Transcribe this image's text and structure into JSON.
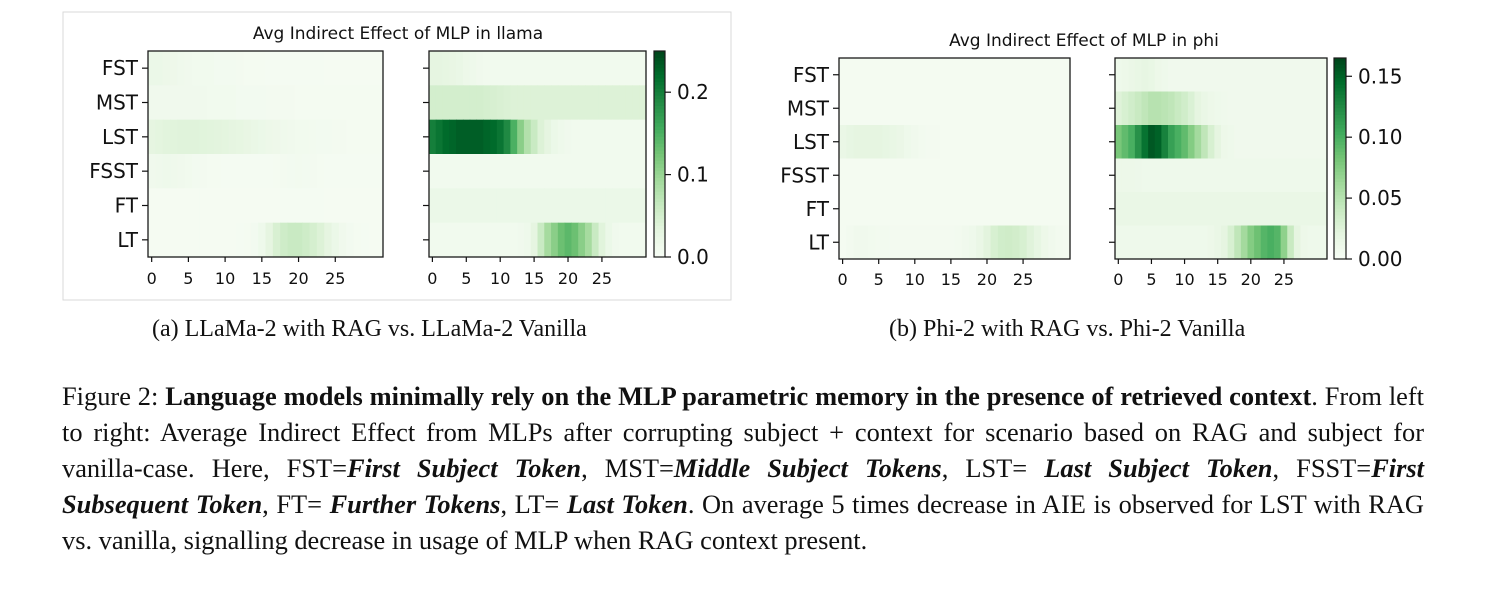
{
  "chart_data": [
    {
      "type": "heatmap",
      "title": "Avg Indirect Effect of MLP in llama",
      "colormap": "Greens",
      "colorbar": {
        "ticks": [
          "0.0",
          "0.1",
          "0.2"
        ],
        "tick_values": [
          0.0,
          0.1,
          0.2
        ],
        "range": [
          0.0,
          0.25
        ]
      },
      "rows": [
        "FST",
        "MST",
        "LST",
        "FSST",
        "FT",
        "LT"
      ],
      "x_ticks": [
        "0",
        "5",
        "10",
        "15",
        "20",
        "25"
      ],
      "num_layers": 32,
      "panels": [
        {
          "name": "LLaMa-2 with RAG",
          "values": {
            "FST": [
              0.02,
              0.02,
              0.018,
              0.016,
              0.014,
              0.012,
              0.01,
              0.01,
              0.01,
              0.008,
              0.008,
              0.008,
              0.007,
              0.006,
              0.006,
              0.006,
              0.005,
              0.005,
              0.005,
              0.005,
              0.005,
              0.005,
              0.005,
              0.005,
              0.004,
              0.004,
              0.004,
              0.004,
              0.004,
              0.004,
              0.004,
              0.004
            ],
            "MST": [
              0.012,
              0.012,
              0.012,
              0.012,
              0.012,
              0.012,
              0.012,
              0.012,
              0.01,
              0.01,
              0.01,
              0.01,
              0.008,
              0.008,
              0.008,
              0.008,
              0.007,
              0.007,
              0.007,
              0.007,
              0.006,
              0.006,
              0.006,
              0.006,
              0.006,
              0.006,
              0.006,
              0.006,
              0.006,
              0.006,
              0.006,
              0.006
            ],
            "LST": [
              0.03,
              0.032,
              0.034,
              0.035,
              0.036,
              0.036,
              0.036,
              0.035,
              0.034,
              0.033,
              0.032,
              0.03,
              0.028,
              0.025,
              0.022,
              0.02,
              0.018,
              0.016,
              0.014,
              0.012,
              0.01,
              0.01,
              0.009,
              0.008,
              0.008,
              0.007,
              0.007,
              0.006,
              0.006,
              0.006,
              0.006,
              0.006
            ],
            "FSST": [
              0.012,
              0.014,
              0.015,
              0.014,
              0.012,
              0.01,
              0.008,
              0.007,
              0.006,
              0.006,
              0.005,
              0.005,
              0.005,
              0.005,
              0.005,
              0.005,
              0.005,
              0.006,
              0.007,
              0.008,
              0.009,
              0.008,
              0.007,
              0.006,
              0.005,
              0.005,
              0.005,
              0.005,
              0.005,
              0.005,
              0.005,
              0.005
            ],
            "FT": [
              0.004,
              0.004,
              0.004,
              0.004,
              0.004,
              0.004,
              0.004,
              0.004,
              0.004,
              0.004,
              0.004,
              0.004,
              0.004,
              0.004,
              0.004,
              0.004,
              0.004,
              0.004,
              0.005,
              0.005,
              0.005,
              0.005,
              0.005,
              0.005,
              0.004,
              0.004,
              0.004,
              0.004,
              0.004,
              0.004,
              0.004,
              0.004
            ],
            "LT": [
              0.004,
              0.004,
              0.004,
              0.004,
              0.004,
              0.004,
              0.004,
              0.004,
              0.004,
              0.004,
              0.004,
              0.004,
              0.005,
              0.006,
              0.008,
              0.015,
              0.03,
              0.045,
              0.055,
              0.06,
              0.06,
              0.055,
              0.048,
              0.04,
              0.03,
              0.02,
              0.012,
              0.008,
              0.006,
              0.005,
              0.004,
              0.004
            ]
          }
        },
        {
          "name": "LLaMa-2 Vanilla",
          "values": {
            "FST": [
              0.03,
              0.03,
              0.028,
              0.025,
              0.022,
              0.018,
              0.015,
              0.012,
              0.01,
              0.01,
              0.01,
              0.01,
              0.01,
              0.01,
              0.01,
              0.01,
              0.01,
              0.01,
              0.01,
              0.01,
              0.01,
              0.01,
              0.01,
              0.01,
              0.01,
              0.01,
              0.01,
              0.01,
              0.01,
              0.01,
              0.01,
              0.01
            ],
            "MST": [
              0.05,
              0.05,
              0.05,
              0.05,
              0.05,
              0.05,
              0.05,
              0.05,
              0.048,
              0.046,
              0.044,
              0.042,
              0.04,
              0.04,
              0.04,
              0.04,
              0.04,
              0.04,
              0.04,
              0.04,
              0.04,
              0.04,
              0.04,
              0.04,
              0.04,
              0.04,
              0.04,
              0.04,
              0.04,
              0.04,
              0.04,
              0.04
            ],
            "LST": [
              0.2,
              0.21,
              0.22,
              0.225,
              0.23,
              0.23,
              0.23,
              0.23,
              0.225,
              0.22,
              0.21,
              0.19,
              0.15,
              0.11,
              0.08,
              0.06,
              0.04,
              0.03,
              0.02,
              0.015,
              0.012,
              0.01,
              0.01,
              0.01,
              0.01,
              0.01,
              0.01,
              0.01,
              0.01,
              0.01,
              0.01,
              0.01
            ],
            "FSST": [
              0.01,
              0.01,
              0.01,
              0.01,
              0.01,
              0.01,
              0.01,
              0.01,
              0.01,
              0.01,
              0.01,
              0.01,
              0.01,
              0.01,
              0.01,
              0.01,
              0.01,
              0.01,
              0.01,
              0.01,
              0.01,
              0.01,
              0.01,
              0.01,
              0.01,
              0.01,
              0.01,
              0.01,
              0.01,
              0.01,
              0.01,
              0.01
            ],
            "FT": [
              0.02,
              0.02,
              0.02,
              0.02,
              0.02,
              0.02,
              0.02,
              0.02,
              0.02,
              0.02,
              0.02,
              0.02,
              0.02,
              0.02,
              0.02,
              0.02,
              0.02,
              0.02,
              0.02,
              0.02,
              0.02,
              0.02,
              0.02,
              0.02,
              0.02,
              0.02,
              0.02,
              0.02,
              0.02,
              0.02,
              0.02,
              0.02
            ],
            "LT": [
              0.01,
              0.01,
              0.01,
              0.01,
              0.01,
              0.01,
              0.01,
              0.01,
              0.01,
              0.01,
              0.01,
              0.01,
              0.01,
              0.012,
              0.015,
              0.03,
              0.06,
              0.09,
              0.11,
              0.13,
              0.14,
              0.13,
              0.11,
              0.09,
              0.06,
              0.035,
              0.02,
              0.012,
              0.01,
              0.01,
              0.01,
              0.01
            ]
          }
        }
      ]
    },
    {
      "type": "heatmap",
      "title": "Avg Indirect Effect of MLP in phi",
      "colormap": "Greens",
      "colorbar": {
        "ticks": [
          "0.00",
          "0.05",
          "0.10",
          "0.15"
        ],
        "tick_values": [
          0.0,
          0.05,
          0.1,
          0.15
        ],
        "range": [
          0.0,
          0.165
        ]
      },
      "rows": [
        "FST",
        "MST",
        "LST",
        "FSST",
        "FT",
        "LT"
      ],
      "x_ticks": [
        "0",
        "5",
        "10",
        "15",
        "20",
        "25"
      ],
      "num_layers": 32,
      "panels": [
        {
          "name": "Phi-2 with RAG",
          "values": {
            "FST": [
              0.004,
              0.004,
              0.004,
              0.004,
              0.004,
              0.004,
              0.004,
              0.004,
              0.004,
              0.004,
              0.004,
              0.004,
              0.004,
              0.004,
              0.004,
              0.004,
              0.004,
              0.004,
              0.004,
              0.004,
              0.004,
              0.004,
              0.004,
              0.004,
              0.004,
              0.004,
              0.004,
              0.004,
              0.004,
              0.004,
              0.004,
              0.004
            ],
            "MST": [
              0.004,
              0.004,
              0.004,
              0.004,
              0.004,
              0.004,
              0.004,
              0.004,
              0.004,
              0.004,
              0.004,
              0.004,
              0.004,
              0.004,
              0.004,
              0.004,
              0.004,
              0.004,
              0.004,
              0.004,
              0.004,
              0.004,
              0.004,
              0.004,
              0.004,
              0.004,
              0.004,
              0.004,
              0.004,
              0.004,
              0.004,
              0.004
            ],
            "LST": [
              0.015,
              0.018,
              0.02,
              0.02,
              0.02,
              0.02,
              0.018,
              0.016,
              0.014,
              0.01,
              0.008,
              0.006,
              0.005,
              0.005,
              0.004,
              0.004,
              0.004,
              0.004,
              0.004,
              0.004,
              0.004,
              0.004,
              0.004,
              0.004,
              0.004,
              0.004,
              0.004,
              0.004,
              0.004,
              0.004,
              0.004,
              0.004
            ],
            "FSST": [
              0.004,
              0.004,
              0.004,
              0.004,
              0.004,
              0.004,
              0.004,
              0.004,
              0.004,
              0.004,
              0.004,
              0.004,
              0.004,
              0.004,
              0.004,
              0.004,
              0.004,
              0.004,
              0.004,
              0.004,
              0.004,
              0.004,
              0.004,
              0.004,
              0.004,
              0.004,
              0.004,
              0.004,
              0.004,
              0.004,
              0.004,
              0.004
            ],
            "FT": [
              0.004,
              0.004,
              0.004,
              0.004,
              0.004,
              0.004,
              0.004,
              0.004,
              0.004,
              0.004,
              0.004,
              0.004,
              0.004,
              0.004,
              0.004,
              0.004,
              0.004,
              0.004,
              0.004,
              0.004,
              0.004,
              0.004,
              0.004,
              0.004,
              0.004,
              0.004,
              0.004,
              0.004,
              0.004,
              0.004,
              0.004,
              0.004
            ],
            "LT": [
              0.004,
              0.006,
              0.008,
              0.008,
              0.007,
              0.006,
              0.006,
              0.005,
              0.005,
              0.005,
              0.005,
              0.005,
              0.005,
              0.005,
              0.005,
              0.005,
              0.006,
              0.008,
              0.01,
              0.015,
              0.022,
              0.03,
              0.035,
              0.036,
              0.034,
              0.03,
              0.024,
              0.018,
              0.012,
              0.008,
              0.006,
              0.005
            ]
          }
        },
        {
          "name": "Phi-2 Vanilla",
          "values": {
            "FST": [
              0.01,
              0.012,
              0.014,
              0.016,
              0.018,
              0.016,
              0.012,
              0.01,
              0.008,
              0.008,
              0.008,
              0.008,
              0.008,
              0.008,
              0.008,
              0.008,
              0.008,
              0.008,
              0.008,
              0.008,
              0.008,
              0.008,
              0.008,
              0.008,
              0.008,
              0.008,
              0.008,
              0.008,
              0.008,
              0.008,
              0.008,
              0.008
            ],
            "MST": [
              0.025,
              0.03,
              0.035,
              0.04,
              0.045,
              0.05,
              0.05,
              0.048,
              0.045,
              0.04,
              0.035,
              0.028,
              0.02,
              0.015,
              0.012,
              0.01,
              0.009,
              0.008,
              0.008,
              0.008,
              0.008,
              0.008,
              0.008,
              0.008,
              0.008,
              0.008,
              0.008,
              0.008,
              0.008,
              0.008,
              0.008,
              0.008
            ],
            "LST": [
              0.08,
              0.09,
              0.1,
              0.12,
              0.14,
              0.155,
              0.15,
              0.13,
              0.11,
              0.1,
              0.09,
              0.075,
              0.06,
              0.045,
              0.03,
              0.02,
              0.012,
              0.01,
              0.008,
              0.008,
              0.008,
              0.008,
              0.008,
              0.008,
              0.008,
              0.008,
              0.008,
              0.008,
              0.008,
              0.008,
              0.008,
              0.008
            ],
            "FSST": [
              0.012,
              0.012,
              0.012,
              0.011,
              0.01,
              0.01,
              0.01,
              0.01,
              0.01,
              0.01,
              0.01,
              0.01,
              0.01,
              0.01,
              0.01,
              0.01,
              0.01,
              0.01,
              0.01,
              0.01,
              0.01,
              0.01,
              0.01,
              0.01,
              0.01,
              0.01,
              0.01,
              0.01,
              0.01,
              0.01,
              0.01,
              0.01
            ],
            "FT": [
              0.015,
              0.015,
              0.015,
              0.015,
              0.015,
              0.015,
              0.015,
              0.015,
              0.015,
              0.015,
              0.015,
              0.015,
              0.015,
              0.015,
              0.015,
              0.015,
              0.015,
              0.015,
              0.015,
              0.015,
              0.015,
              0.015,
              0.015,
              0.015,
              0.015,
              0.015,
              0.015,
              0.015,
              0.015,
              0.015,
              0.015,
              0.015
            ],
            "LT": [
              0.01,
              0.01,
              0.01,
              0.01,
              0.01,
              0.01,
              0.01,
              0.01,
              0.01,
              0.01,
              0.01,
              0.01,
              0.01,
              0.01,
              0.012,
              0.015,
              0.02,
              0.03,
              0.045,
              0.06,
              0.075,
              0.085,
              0.095,
              0.1,
              0.095,
              0.07,
              0.04,
              0.02,
              0.012,
              0.01,
              0.01,
              0.01
            ]
          }
        }
      ]
    }
  ],
  "subcaptions": {
    "a": "(a) LLaMa-2 with RAG vs. LLaMa-2 Vanilla",
    "b": "(b) Phi-2 with RAG vs. Phi-2 Vanilla"
  },
  "caption": {
    "label": "Figure 2:",
    "bold_title": "Language models minimally rely on the MLP parametric memory in the presence of retrieved context",
    "text_1": ". From left to right: Average Indirect Effect from MLPs after corrupting subject + context for scenario based on RAG and subject for vanilla-case. Here, FST=",
    "term_fst": "First Subject Token",
    "text_2": ", MST=",
    "term_mst": "Middle Subject Tokens",
    "text_3": ", LST= ",
    "term_lst": "Last Subject Token",
    "text_4": ", FSST=",
    "term_fsst": "First Subsequent Token",
    "text_5": ", FT= ",
    "term_ft": "Further Tokens",
    "text_6": ", LT= ",
    "term_lt": "Last Token",
    "text_7": ". On average 5 times decrease in AIE is observed for LST with RAG vs. vanilla, signalling decrease in usage of MLP when RAG context present."
  },
  "colors": {
    "cmap_low": "#f7fcf5",
    "cmap_high": "#00441b",
    "frame": "#1a1a1a"
  }
}
